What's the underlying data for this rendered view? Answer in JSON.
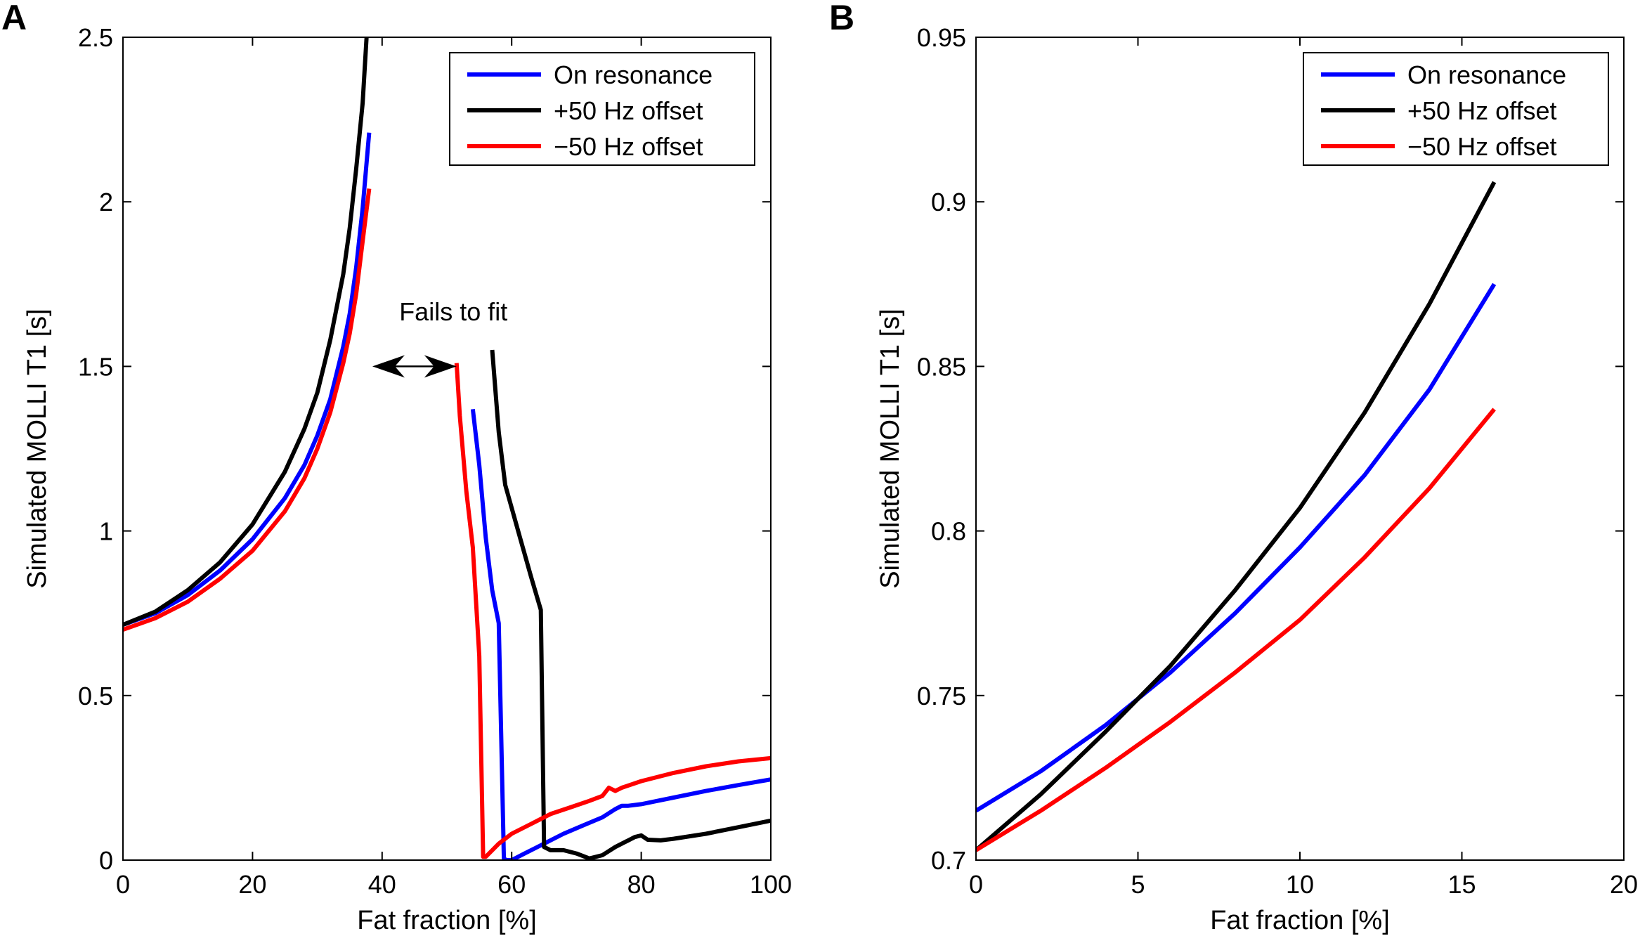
{
  "chart_data": [
    {
      "panel_label": "A",
      "type": "line",
      "xlabel": "Fat fraction [%]",
      "ylabel": "Simulated MOLLI T1 [s]",
      "xlim": [
        0,
        100
      ],
      "ylim": [
        0,
        2.5
      ],
      "xticks": [
        0,
        20,
        40,
        60,
        80,
        100
      ],
      "yticks": [
        0,
        0.5,
        1,
        1.5,
        2,
        2.5
      ],
      "xtick_labels": [
        "0",
        "20",
        "40",
        "60",
        "80",
        "100"
      ],
      "ytick_labels": [
        "0",
        "0.5",
        "1",
        "1.5",
        "2",
        "2.5"
      ],
      "grid": false,
      "legend_position": "top-right",
      "annotation": {
        "text": "Fails to fit",
        "arrow_from": [
          38.5,
          1.5
        ],
        "arrow_to": [
          51.5,
          1.5
        ],
        "text_at": [
          51,
          1.64
        ]
      },
      "series": [
        {
          "name": "On resonance",
          "color": "#0000ff",
          "segments": [
            [
              [
                0,
                0.715
              ],
              [
                5,
                0.75
              ],
              [
                10,
                0.805
              ],
              [
                15,
                0.88
              ],
              [
                20,
                0.975
              ],
              [
                25,
                1.1
              ],
              [
                28,
                1.2
              ],
              [
                30,
                1.29
              ],
              [
                32,
                1.4
              ],
              [
                34,
                1.56
              ],
              [
                35,
                1.66
              ],
              [
                36,
                1.8
              ],
              [
                37,
                1.98
              ],
              [
                38,
                2.21
              ]
            ],
            [
              [
                54,
                1.37
              ],
              [
                55,
                1.2
              ],
              [
                56,
                0.98
              ],
              [
                57,
                0.82
              ],
              [
                58,
                0.72
              ],
              [
                58.8,
                0.005
              ],
              [
                59.2,
                0.0
              ],
              [
                60,
                0.0
              ],
              [
                62,
                0.02
              ],
              [
                65,
                0.05
              ],
              [
                68,
                0.08
              ],
              [
                71,
                0.105
              ],
              [
                74,
                0.13
              ],
              [
                76,
                0.155
              ],
              [
                77,
                0.165
              ],
              [
                78,
                0.165
              ],
              [
                80,
                0.17
              ],
              [
                85,
                0.19
              ],
              [
                90,
                0.21
              ],
              [
                95,
                0.228
              ],
              [
                100,
                0.245
              ]
            ]
          ]
        },
        {
          "name": "+50 Hz offset",
          "color": "#000000",
          "segments": [
            [
              [
                0,
                0.715
              ],
              [
                5,
                0.755
              ],
              [
                10,
                0.82
              ],
              [
                15,
                0.905
              ],
              [
                20,
                1.02
              ],
              [
                25,
                1.18
              ],
              [
                28,
                1.31
              ],
              [
                30,
                1.42
              ],
              [
                32,
                1.58
              ],
              [
                34,
                1.78
              ],
              [
                35,
                1.92
              ],
              [
                36,
                2.1
              ],
              [
                37,
                2.3
              ],
              [
                37.6,
                2.5
              ]
            ],
            [
              [
                57,
                1.55
              ],
              [
                58,
                1.3
              ],
              [
                59,
                1.14
              ],
              [
                61,
                1.0
              ],
              [
                63,
                0.86
              ],
              [
                64.5,
                0.76
              ],
              [
                65,
                0.04
              ],
              [
                66,
                0.03
              ],
              [
                68,
                0.03
              ],
              [
                70,
                0.02
              ],
              [
                72,
                0.005
              ],
              [
                74,
                0.015
              ],
              [
                76,
                0.04
              ],
              [
                78,
                0.06
              ],
              [
                79,
                0.07
              ],
              [
                80,
                0.075
              ],
              [
                81,
                0.062
              ],
              [
                83,
                0.06
              ],
              [
                85,
                0.065
              ],
              [
                90,
                0.08
              ],
              [
                95,
                0.1
              ],
              [
                100,
                0.12
              ]
            ]
          ]
        },
        {
          "name": "−50 Hz offset",
          "color": "#ff0000",
          "segments": [
            [
              [
                0,
                0.7
              ],
              [
                5,
                0.735
              ],
              [
                10,
                0.785
              ],
              [
                15,
                0.855
              ],
              [
                20,
                0.94
              ],
              [
                25,
                1.06
              ],
              [
                28,
                1.16
              ],
              [
                30,
                1.25
              ],
              [
                32,
                1.36
              ],
              [
                34,
                1.51
              ],
              [
                35,
                1.6
              ],
              [
                36,
                1.72
              ],
              [
                37,
                1.88
              ],
              [
                38,
                2.04
              ]
            ],
            [
              [
                51.5,
                1.51
              ],
              [
                52,
                1.35
              ],
              [
                53,
                1.12
              ],
              [
                54,
                0.95
              ],
              [
                55,
                0.62
              ],
              [
                55.6,
                0.01
              ],
              [
                56,
                0.01
              ],
              [
                58,
                0.05
              ],
              [
                60,
                0.08
              ],
              [
                63,
                0.11
              ],
              [
                66,
                0.14
              ],
              [
                69,
                0.16
              ],
              [
                72,
                0.18
              ],
              [
                74,
                0.195
              ],
              [
                75,
                0.22
              ],
              [
                76,
                0.21
              ],
              [
                77,
                0.22
              ],
              [
                80,
                0.24
              ],
              [
                85,
                0.265
              ],
              [
                90,
                0.285
              ],
              [
                95,
                0.3
              ],
              [
                100,
                0.31
              ]
            ]
          ]
        }
      ]
    },
    {
      "panel_label": "B",
      "type": "line",
      "xlabel": "Fat fraction [%]",
      "ylabel": "Simulated MOLLI T1 [s]",
      "xlim": [
        0,
        20
      ],
      "ylim": [
        0.7,
        0.95
      ],
      "xticks": [
        0,
        5,
        10,
        15,
        20
      ],
      "yticks": [
        0.7,
        0.75,
        0.8,
        0.85,
        0.9,
        0.95
      ],
      "xtick_labels": [
        "0",
        "5",
        "10",
        "15",
        "20"
      ],
      "ytick_labels": [
        "0.7",
        "0.75",
        "0.8",
        "0.85",
        "0.9",
        "0.95"
      ],
      "grid": false,
      "legend_position": "top-right",
      "series": [
        {
          "name": "On resonance",
          "color": "#0000ff",
          "segments": [
            [
              [
                0,
                0.715
              ],
              [
                2,
                0.727
              ],
              [
                4,
                0.741
              ],
              [
                6,
                0.757
              ],
              [
                8,
                0.775
              ],
              [
                10,
                0.795
              ],
              [
                12,
                0.817
              ],
              [
                14,
                0.843
              ],
              [
                16,
                0.875
              ]
            ]
          ]
        },
        {
          "name": "+50 Hz offset",
          "color": "#000000",
          "segments": [
            [
              [
                0,
                0.703
              ],
              [
                2,
                0.72
              ],
              [
                4,
                0.739
              ],
              [
                6,
                0.759
              ],
              [
                8,
                0.782
              ],
              [
                10,
                0.807
              ],
              [
                12,
                0.836
              ],
              [
                14,
                0.869
              ],
              [
                16,
                0.906
              ]
            ]
          ]
        },
        {
          "name": "−50 Hz offset",
          "color": "#ff0000",
          "segments": [
            [
              [
                0,
                0.703
              ],
              [
                2,
                0.715
              ],
              [
                4,
                0.728
              ],
              [
                6,
                0.742
              ],
              [
                8,
                0.757
              ],
              [
                10,
                0.773
              ],
              [
                12,
                0.792
              ],
              [
                14,
                0.813
              ],
              [
                16,
                0.837
              ]
            ]
          ]
        }
      ]
    }
  ]
}
